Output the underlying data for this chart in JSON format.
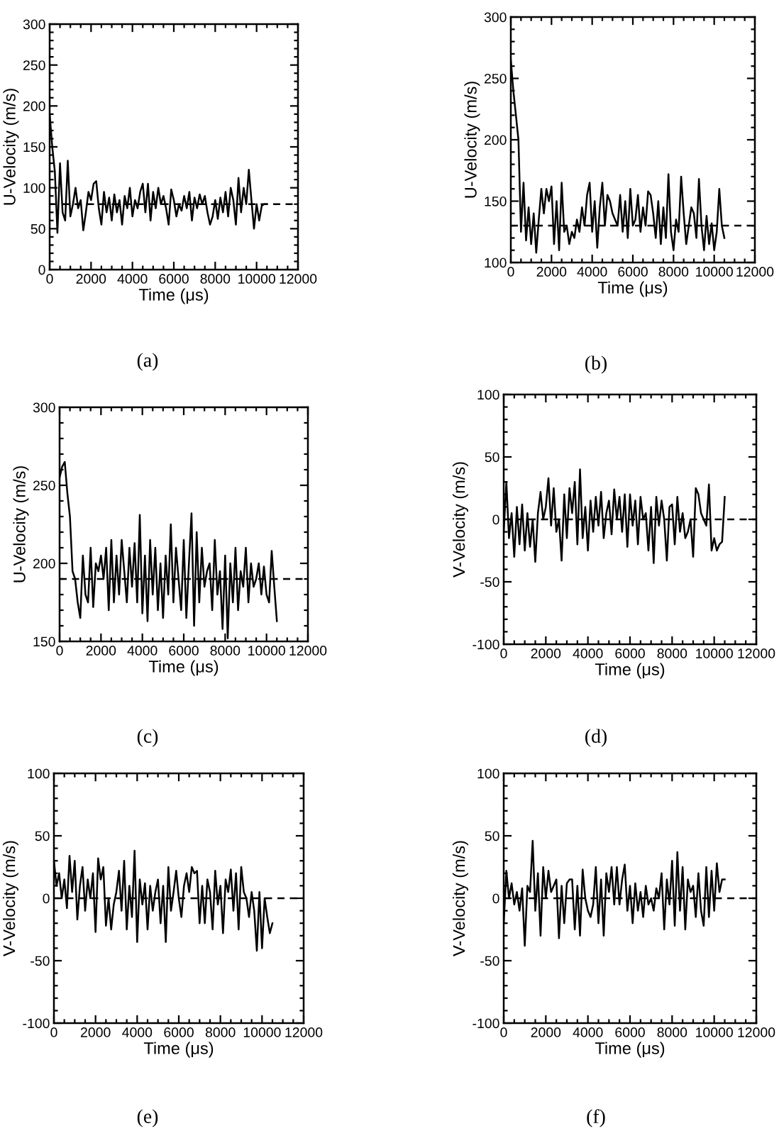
{
  "chart_data": [
    {
      "type": "line",
      "xlabel": "Time (μs)",
      "ylabel": "U-Velocity (m/s)",
      "annotations": [
        "(a)"
      ],
      "xlim": [
        0,
        12000
      ],
      "xticks": [
        0,
        2000,
        4000,
        6000,
        8000,
        10000,
        12000
      ],
      "ylim": [
        0,
        300
      ],
      "yticks": [
        0,
        50,
        100,
        150,
        200,
        250,
        300
      ],
      "ref_lines": [
        {
          "axis": "y",
          "value": 80,
          "color": "#000000",
          "line_style": "dashed"
        }
      ],
      "x": [
        0,
        125,
        250,
        375,
        500,
        625,
        750,
        875,
        1000,
        1125,
        1250,
        1375,
        1500,
        1625,
        1750,
        1875,
        2000,
        2125,
        2250,
        2375,
        2500,
        2625,
        2750,
        2875,
        3000,
        3125,
        3250,
        3375,
        3500,
        3625,
        3750,
        3875,
        4000,
        4125,
        4250,
        4375,
        4500,
        4625,
        4750,
        4875,
        5000,
        5125,
        5250,
        5375,
        5500,
        5625,
        5750,
        5875,
        6000,
        6125,
        6250,
        6375,
        6500,
        6625,
        6750,
        6875,
        7000,
        7125,
        7250,
        7375,
        7500,
        7625,
        7750,
        7875,
        8000,
        8125,
        8250,
        8375,
        8500,
        8625,
        8750,
        8875,
        9000,
        9125,
        9250,
        9375,
        9500,
        9625,
        9750,
        9875,
        10000,
        10125,
        10250,
        10375,
        10500
      ],
      "series": [
        {
          "color": "#000000",
          "values": [
            190,
            150,
            120,
            45,
            130,
            70,
            60,
            133,
            65,
            80,
            100,
            75,
            85,
            48,
            70,
            95,
            85,
            105,
            108,
            75,
            55,
            95,
            70,
            88,
            60,
            92,
            70,
            85,
            55,
            90,
            75,
            100,
            65,
            85,
            75,
            95,
            105,
            70,
            105,
            60,
            95,
            75,
            100,
            80,
            90,
            75,
            55,
            98,
            85,
            65,
            80,
            72,
            90,
            75,
            95,
            60,
            88,
            75,
            92,
            80,
            90,
            70,
            55,
            65,
            85,
            62,
            88,
            70,
            95,
            65,
            100,
            85,
            55,
            112,
            70,
            100,
            80,
            122,
            85,
            50,
            80,
            60,
            78,
            80,
            80
          ]
        }
      ]
    },
    {
      "type": "line",
      "xlabel": "Time (μs)",
      "ylabel": "U-Velocity (m/s)",
      "annotations": [
        "(b)"
      ],
      "xlim": [
        0,
        12000
      ],
      "xticks": [
        0,
        2000,
        4000,
        6000,
        8000,
        10000,
        12000
      ],
      "ylim": [
        100,
        300
      ],
      "yticks": [
        100,
        150,
        200,
        250,
        300
      ],
      "ref_lines": [
        {
          "axis": "y",
          "value": 130,
          "color": "#000000",
          "line_style": "dashed"
        }
      ],
      "x": [
        0,
        125,
        250,
        375,
        500,
        625,
        750,
        875,
        1000,
        1125,
        1250,
        1375,
        1500,
        1625,
        1750,
        1875,
        2000,
        2125,
        2250,
        2375,
        2500,
        2625,
        2750,
        2875,
        3000,
        3125,
        3250,
        3375,
        3500,
        3625,
        3750,
        3875,
        4000,
        4125,
        4250,
        4375,
        4500,
        4625,
        4750,
        4875,
        5000,
        5125,
        5250,
        5375,
        5500,
        5625,
        5750,
        5875,
        6000,
        6125,
        6250,
        6375,
        6500,
        6625,
        6750,
        6875,
        7000,
        7125,
        7250,
        7375,
        7500,
        7625,
        7750,
        7875,
        8000,
        8125,
        8250,
        8375,
        8500,
        8625,
        8750,
        8875,
        9000,
        9125,
        9250,
        9375,
        9500,
        9625,
        9750,
        9875,
        10000,
        10125,
        10250,
        10375,
        10500
      ],
      "series": [
        {
          "color": "#000000",
          "values": [
            265,
            240,
            220,
            200,
            125,
            165,
            118,
            145,
            115,
            140,
            108,
            135,
            160,
            140,
            160,
            150,
            162,
            115,
            150,
            110,
            165,
            125,
            130,
            115,
            125,
            120,
            135,
            125,
            145,
            130,
            155,
            165,
            125,
            150,
            112,
            145,
            165,
            130,
            155,
            150,
            140,
            135,
            130,
            155,
            125,
            150,
            120,
            160,
            130,
            135,
            155,
            125,
            145,
            130,
            158,
            155,
            140,
            120,
            150,
            115,
            145,
            120,
            172,
            125,
            110,
            135,
            125,
            170,
            140,
            115,
            130,
            145,
            140,
            120,
            168,
            130,
            110,
            138,
            115,
            132,
            110,
            125,
            160,
            130,
            120
          ]
        }
      ]
    },
    {
      "type": "line",
      "xlabel": "Time (μs)",
      "ylabel": "U-Velocity (m/s)",
      "annotations": [
        "(c)"
      ],
      "xlim": [
        0,
        12000
      ],
      "xticks": [
        0,
        2000,
        4000,
        6000,
        8000,
        10000,
        12000
      ],
      "ylim": [
        150,
        300
      ],
      "yticks": [
        150,
        200,
        250,
        300
      ],
      "ref_lines": [
        {
          "axis": "y",
          "value": 190,
          "color": "#000000",
          "line_style": "dashed"
        }
      ],
      "x": [
        0,
        125,
        250,
        375,
        500,
        625,
        750,
        875,
        1000,
        1125,
        1250,
        1375,
        1500,
        1625,
        1750,
        1875,
        2000,
        2125,
        2250,
        2375,
        2500,
        2625,
        2750,
        2875,
        3000,
        3125,
        3250,
        3375,
        3500,
        3625,
        3750,
        3875,
        4000,
        4125,
        4250,
        4375,
        4500,
        4625,
        4750,
        4875,
        5000,
        5125,
        5250,
        5375,
        5500,
        5625,
        5750,
        5875,
        6000,
        6125,
        6250,
        6375,
        6500,
        6625,
        6750,
        6875,
        7000,
        7125,
        7250,
        7375,
        7500,
        7625,
        7750,
        7875,
        8000,
        8125,
        8250,
        8375,
        8500,
        8625,
        8750,
        8875,
        9000,
        9125,
        9250,
        9375,
        9500,
        9625,
        9750,
        9875,
        10000,
        10125,
        10250,
        10375,
        10500
      ],
      "series": [
        {
          "color": "#000000",
          "values": [
            255,
            262,
            265,
            245,
            230,
            195,
            190,
            175,
            165,
            205,
            180,
            175,
            210,
            172,
            200,
            195,
            205,
            190,
            210,
            170,
            215,
            175,
            205,
            180,
            215,
            195,
            175,
            210,
            185,
            213,
            175,
            231,
            168,
            205,
            163,
            215,
            180,
            210,
            170,
            200,
            165,
            205,
            180,
            225,
            175,
            210,
            190,
            170,
            215,
            165,
            200,
            232,
            160,
            220,
            175,
            210,
            185,
            195,
            200,
            170,
            215,
            180,
            195,
            158,
            205,
            152,
            200,
            175,
            210,
            170,
            195,
            185,
            210,
            175,
            200,
            185,
            190,
            200,
            180,
            198,
            180,
            175,
            208,
            185,
            163
          ]
        }
      ]
    },
    {
      "type": "line",
      "xlabel": "Time (μs)",
      "ylabel": "V-Velocity (m/s)",
      "annotations": [
        "(d)"
      ],
      "xlim": [
        0,
        12000
      ],
      "xticks": [
        0,
        2000,
        4000,
        6000,
        8000,
        10000,
        12000
      ],
      "ylim": [
        -100,
        100
      ],
      "yticks": [
        -100,
        -50,
        0,
        50,
        100
      ],
      "ref_lines": [
        {
          "axis": "y",
          "value": 0,
          "color": "#000000",
          "line_style": "dashed"
        }
      ],
      "x": [
        0,
        125,
        250,
        375,
        500,
        625,
        750,
        875,
        1000,
        1125,
        1250,
        1375,
        1500,
        1625,
        1750,
        1875,
        2000,
        2125,
        2250,
        2375,
        2500,
        2625,
        2750,
        2875,
        3000,
        3125,
        3250,
        3375,
        3500,
        3625,
        3750,
        3875,
        4000,
        4125,
        4250,
        4375,
        4500,
        4625,
        4750,
        4875,
        5000,
        5125,
        5250,
        5375,
        5500,
        5625,
        5750,
        5875,
        6000,
        6125,
        6250,
        6375,
        6500,
        6625,
        6750,
        6875,
        7000,
        7125,
        7250,
        7375,
        7500,
        7625,
        7750,
        7875,
        8000,
        8125,
        8250,
        8375,
        8500,
        8625,
        8750,
        8875,
        9000,
        9125,
        9250,
        9375,
        9500,
        9625,
        9750,
        9875,
        10000,
        10125,
        10250,
        10375,
        10500
      ],
      "series": [
        {
          "color": "#000000",
          "values": [
            -10,
            30,
            -15,
            5,
            -30,
            10,
            -20,
            12,
            -25,
            5,
            -22,
            0,
            -34,
            5,
            22,
            0,
            10,
            33,
            -5,
            25,
            -10,
            0,
            -33,
            20,
            -15,
            25,
            5,
            30,
            -20,
            40,
            -15,
            10,
            -25,
            15,
            -10,
            18,
            -5,
            22,
            -15,
            5,
            15,
            -12,
            24,
            0,
            18,
            -10,
            20,
            -22,
            20,
            -5,
            15,
            -20,
            18,
            0,
            5,
            -25,
            10,
            -35,
            18,
            -5,
            15,
            0,
            -33,
            10,
            12,
            -20,
            18,
            -10,
            5,
            -15,
            -10,
            0,
            -30,
            25,
            20,
            5,
            0,
            -5,
            28,
            -25,
            -15,
            -25,
            -20,
            -18,
            18
          ]
        }
      ]
    },
    {
      "type": "line",
      "xlabel": "Time (μs)",
      "ylabel": "V-Velocity (m/s)",
      "annotations": [
        "(e)"
      ],
      "xlim": [
        0,
        12000
      ],
      "xticks": [
        0,
        2000,
        4000,
        6000,
        8000,
        10000,
        12000
      ],
      "ylim": [
        -100,
        100
      ],
      "yticks": [
        -100,
        -50,
        0,
        50,
        100
      ],
      "ref_lines": [
        {
          "axis": "y",
          "value": 0,
          "color": "#000000",
          "line_style": "dashed"
        }
      ],
      "x": [
        0,
        125,
        250,
        375,
        500,
        625,
        750,
        875,
        1000,
        1125,
        1250,
        1375,
        1500,
        1625,
        1750,
        1875,
        2000,
        2125,
        2250,
        2375,
        2500,
        2625,
        2750,
        2875,
        3000,
        3125,
        3250,
        3375,
        3500,
        3625,
        3750,
        3875,
        4000,
        4125,
        4250,
        4375,
        4500,
        4625,
        4750,
        4875,
        5000,
        5125,
        5250,
        5375,
        5500,
        5625,
        5750,
        5875,
        6000,
        6125,
        6250,
        6375,
        6500,
        6625,
        6750,
        6875,
        7000,
        7125,
        7250,
        7375,
        7500,
        7625,
        7750,
        7875,
        8000,
        8125,
        8250,
        8375,
        8500,
        8625,
        8750,
        8875,
        9000,
        9125,
        9250,
        9375,
        9500,
        9625,
        9750,
        9875,
        10000,
        10125,
        10250,
        10375,
        10500
      ],
      "series": [
        {
          "color": "#000000",
          "values": [
            30,
            10,
            20,
            0,
            15,
            -8,
            34,
            5,
            30,
            -17,
            10,
            25,
            -10,
            15,
            0,
            20,
            -27,
            32,
            15,
            25,
            -22,
            0,
            -25,
            -5,
            5,
            22,
            -10,
            30,
            -25,
            10,
            -15,
            38,
            -35,
            15,
            -5,
            12,
            -25,
            10,
            -10,
            5,
            15,
            -20,
            10,
            -35,
            25,
            -10,
            5,
            22,
            0,
            -15,
            10,
            20,
            5,
            25,
            20,
            22,
            -20,
            10,
            -20,
            15,
            5,
            -25,
            22,
            -5,
            10,
            -28,
            15,
            5,
            23,
            -10,
            20,
            -25,
            25,
            5,
            0,
            -15,
            5,
            -10,
            -42,
            5,
            -40,
            0,
            -15,
            -28,
            -20
          ]
        }
      ]
    },
    {
      "type": "line",
      "xlabel": "Time (μs)",
      "ylabel": "V-Velocity (m/s)",
      "annotations": [
        "(f)"
      ],
      "xlim": [
        0,
        12000
      ],
      "xticks": [
        0,
        2000,
        4000,
        6000,
        8000,
        10000,
        12000
      ],
      "ylim": [
        -100,
        100
      ],
      "yticks": [
        -100,
        -50,
        0,
        50,
        100
      ],
      "ref_lines": [
        {
          "axis": "y",
          "value": 0,
          "color": "#000000",
          "line_style": "dashed"
        }
      ],
      "x": [
        0,
        125,
        250,
        375,
        500,
        625,
        750,
        875,
        1000,
        1125,
        1250,
        1375,
        1500,
        1625,
        1750,
        1875,
        2000,
        2125,
        2250,
        2375,
        2500,
        2625,
        2750,
        2875,
        3000,
        3125,
        3250,
        3375,
        3500,
        3625,
        3750,
        3875,
        4000,
        4125,
        4250,
        4375,
        4500,
        4625,
        4750,
        4875,
        5000,
        5125,
        5250,
        5375,
        5500,
        5625,
        5750,
        5875,
        6000,
        6125,
        6250,
        6375,
        6500,
        6625,
        6750,
        6875,
        7000,
        7125,
        7250,
        7375,
        7500,
        7625,
        7750,
        7875,
        8000,
        8125,
        8250,
        8375,
        8500,
        8625,
        8750,
        8875,
        9000,
        9125,
        9250,
        9375,
        9500,
        9625,
        9750,
        9875,
        10000,
        10125,
        10250,
        10375,
        10500
      ],
      "series": [
        {
          "color": "#000000",
          "values": [
            -20,
            22,
            0,
            12,
            -5,
            5,
            -10,
            8,
            -38,
            10,
            5,
            46,
            -10,
            20,
            -30,
            25,
            0,
            22,
            5,
            10,
            15,
            -32,
            10,
            -20,
            12,
            15,
            15,
            -25,
            10,
            -30,
            23,
            0,
            -10,
            -15,
            -5,
            25,
            -20,
            15,
            -30,
            20,
            5,
            25,
            -5,
            25,
            -5,
            15,
            27,
            -10,
            10,
            -20,
            12,
            -10,
            5,
            -15,
            10,
            -5,
            0,
            -10,
            8,
            0,
            20,
            -25,
            15,
            -5,
            30,
            -22,
            37,
            -10,
            25,
            -25,
            15,
            5,
            10,
            -15,
            20,
            -10,
            -22,
            25,
            -15,
            22,
            -10,
            28,
            5,
            15,
            15
          ]
        }
      ]
    }
  ]
}
